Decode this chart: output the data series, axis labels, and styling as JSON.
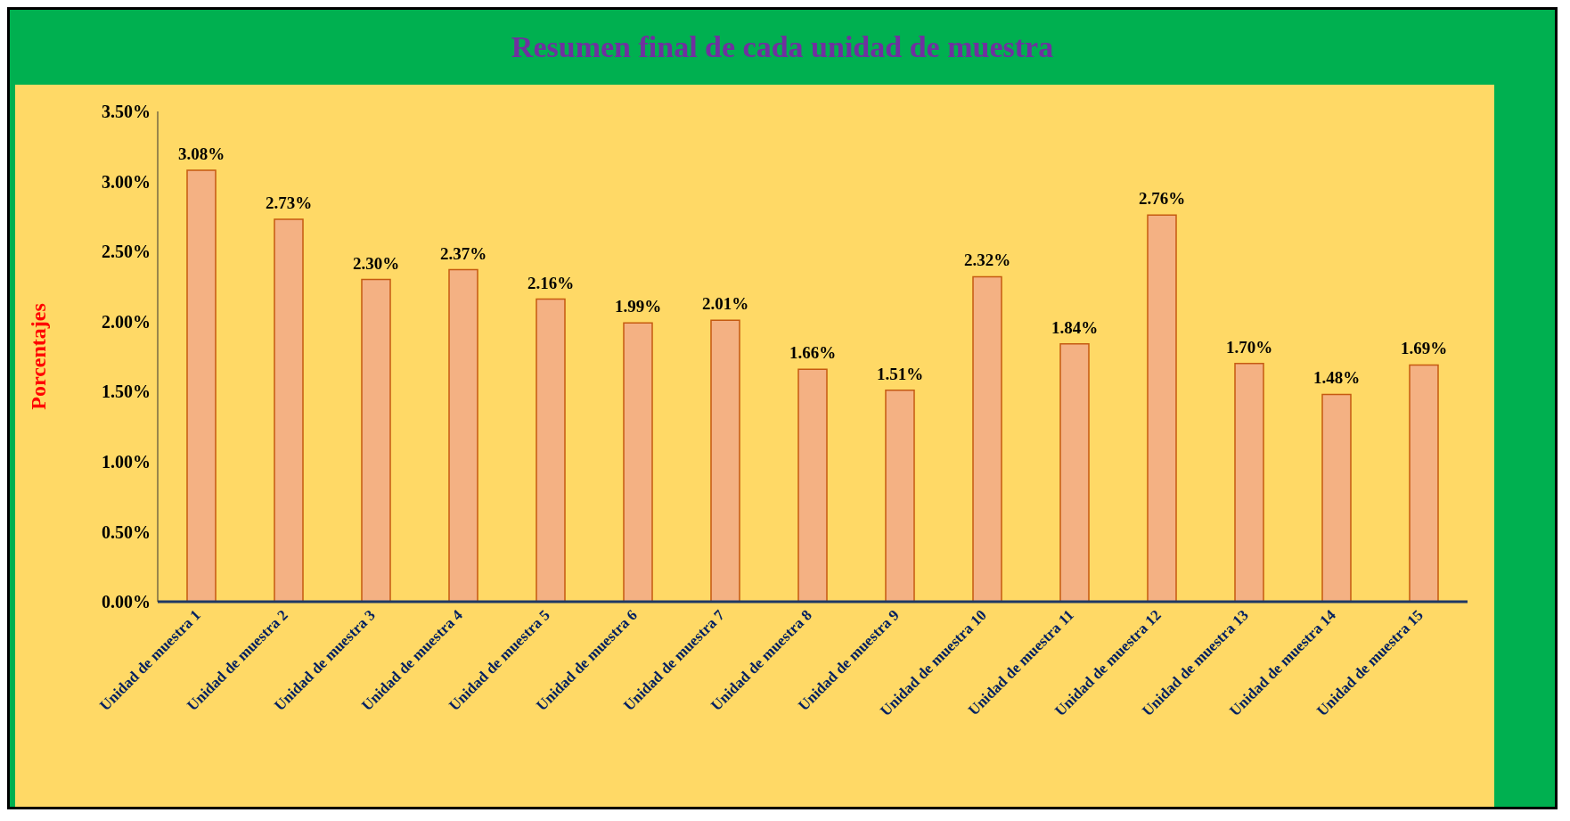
{
  "chart_data": {
    "type": "bar",
    "title": "Resumen final de cada unidad de muestra",
    "ylabel": "Porcentajes",
    "categories": [
      "Unidad de muestra 1",
      "Unidad de muestra 2",
      "Unidad de muestra 3",
      "Unidad de muestra 4",
      "Unidad de muestra 5",
      "Unidad de muestra 6",
      "Unidad de muestra 7",
      "Unidad de muestra 8",
      "Unidad de muestra 9",
      "Unidad de muestra 10",
      "Unidad de muestra 11",
      "Unidad de muestra 12",
      "Unidad de muestra 13",
      "Unidad de muestra 14",
      "Unidad de muestra 15"
    ],
    "values": [
      3.08,
      2.73,
      2.3,
      2.37,
      2.16,
      1.99,
      2.01,
      1.66,
      1.51,
      2.32,
      1.84,
      2.76,
      1.7,
      1.48,
      1.69
    ],
    "value_labels": [
      "3.08%",
      "2.73%",
      "2.30%",
      "2.37%",
      "2.16%",
      "1.99%",
      "2.01%",
      "1.66%",
      "1.51%",
      "2.32%",
      "1.84%",
      "2.76%",
      "1.70%",
      "1.48%",
      "1.69%"
    ],
    "color": "#f4b183",
    "ylim": [
      0,
      3.5
    ],
    "yticks": [
      {
        "value": 0,
        "label": "0.00%"
      },
      {
        "value": 0.5,
        "label": "0.50%"
      },
      {
        "value": 1,
        "label": "1.00%"
      },
      {
        "value": 1.5,
        "label": "1.50%"
      },
      {
        "value": 2,
        "label": "2.00%"
      },
      {
        "value": 2.5,
        "label": "2.50%"
      },
      {
        "value": 3,
        "label": "3.00%"
      },
      {
        "value": 3.5,
        "label": "3.50%"
      }
    ],
    "legend": false
  }
}
